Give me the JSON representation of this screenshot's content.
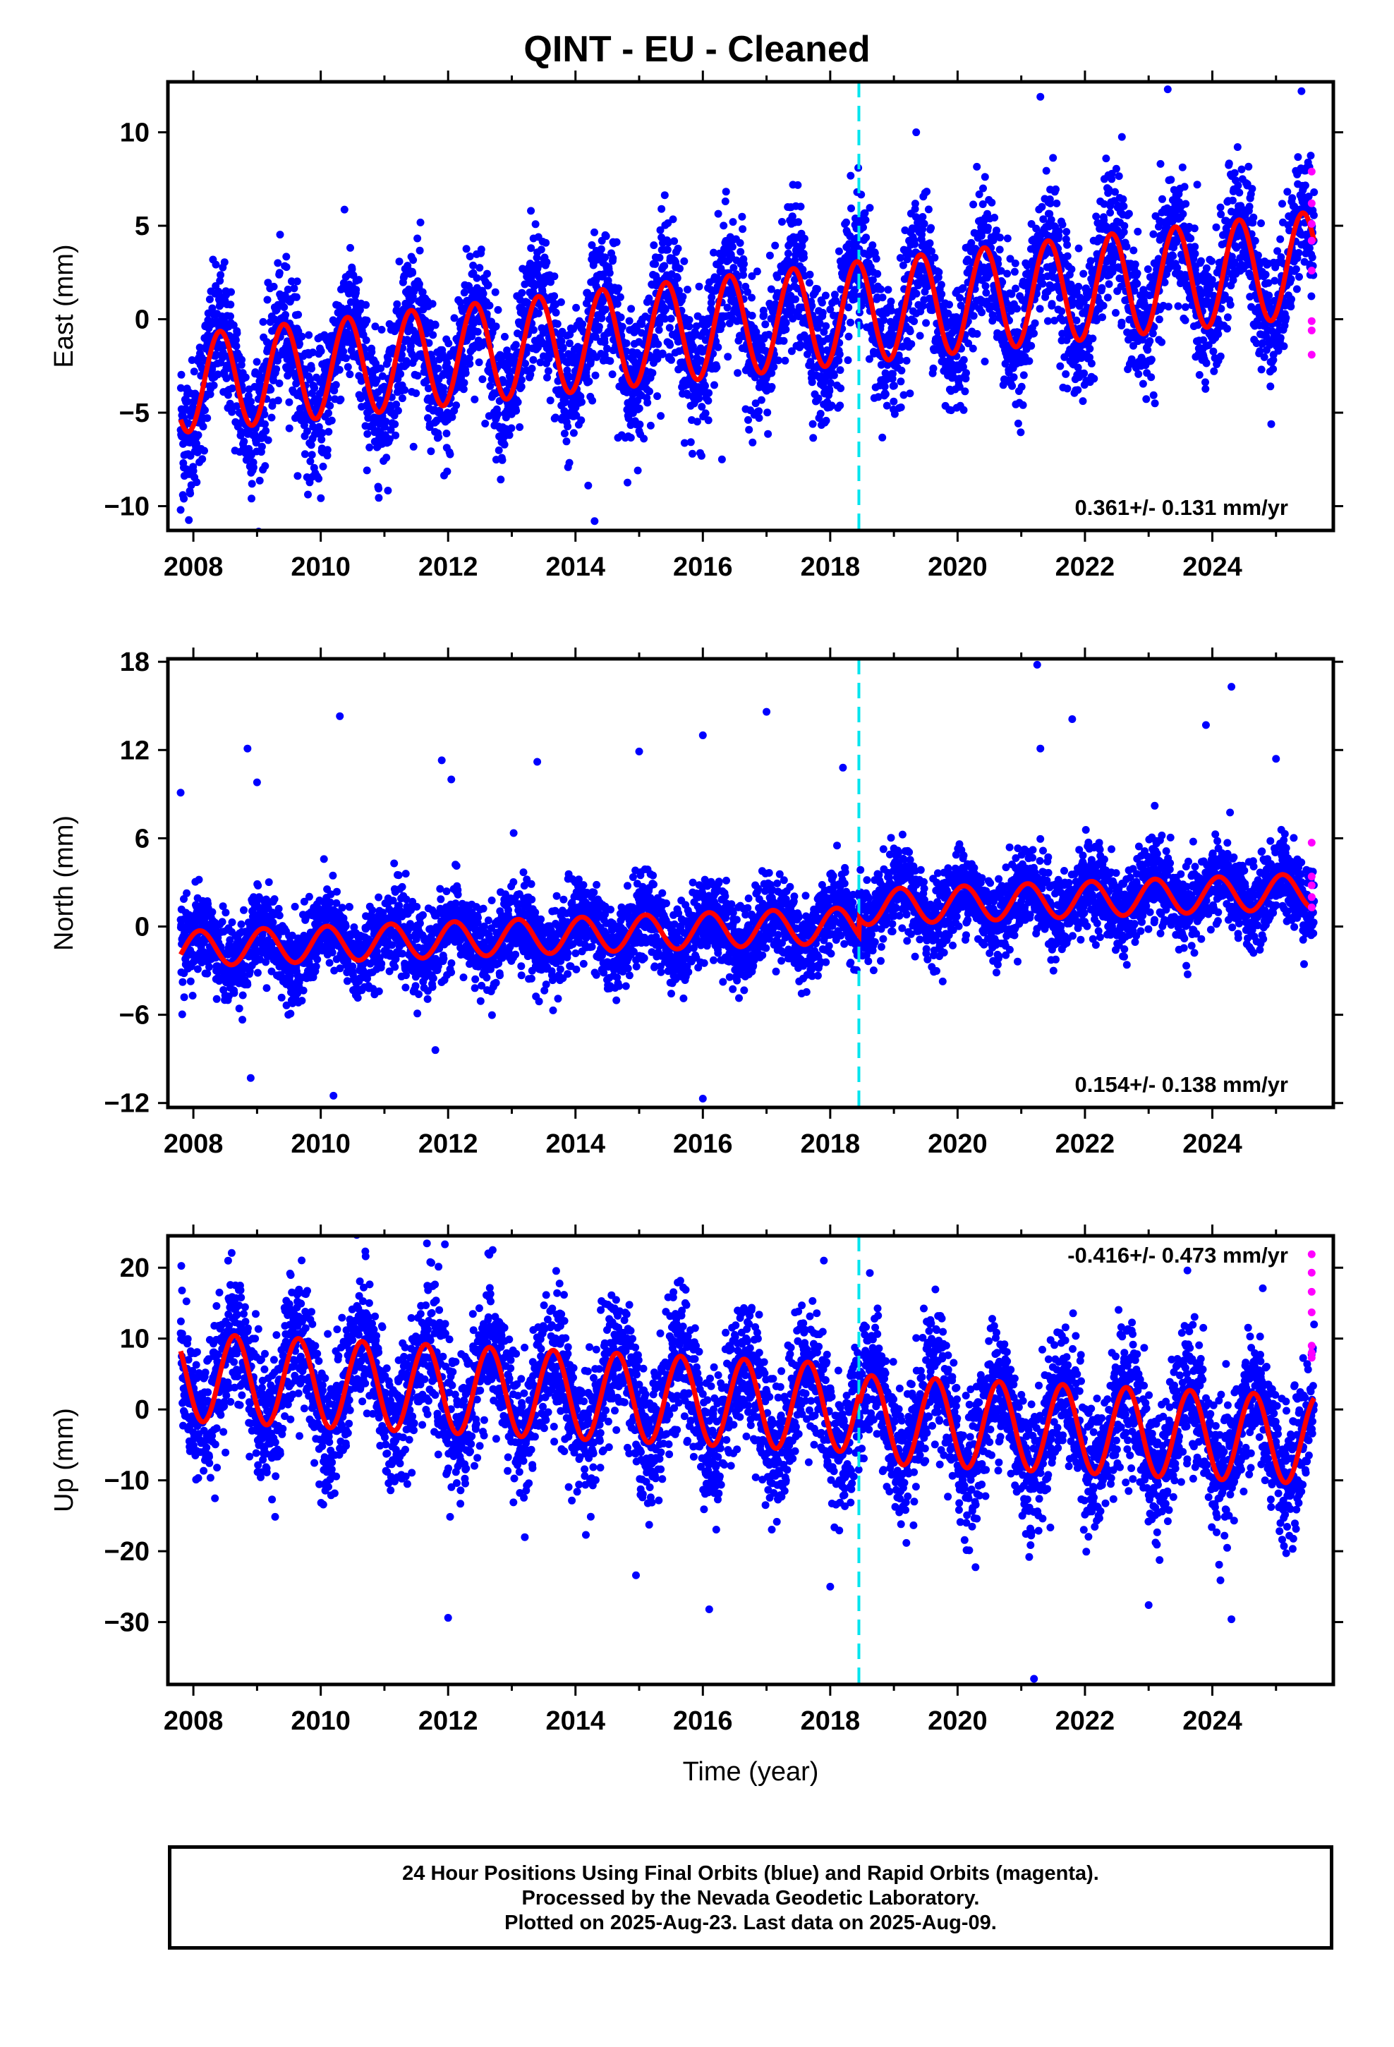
{
  "page": {
    "title": "QINT  - EU - Cleaned"
  },
  "colors": {
    "final": "#0000ff",
    "rapid": "#ff00ff",
    "model": "#ff0000",
    "antenna_change": "#00e5ee"
  },
  "chart_data": [
    {
      "type": "scatter",
      "id": "east",
      "ylabel": "East (mm)",
      "xlabel": "",
      "xlim": [
        2007.6,
        2025.9
      ],
      "ylim": [
        -11.3,
        12.7
      ],
      "yticks": [
        -10,
        -5,
        0,
        5,
        10
      ],
      "ytick_labels": [
        "−10",
        "−5",
        "0",
        "5",
        "10"
      ],
      "xticks": [
        2008,
        2010,
        2012,
        2014,
        2016,
        2018,
        2020,
        2022,
        2024
      ],
      "xtick_labels": [
        "2008",
        "2010",
        "2012",
        "2014",
        "2016",
        "2018",
        "2020",
        "2022",
        "2024"
      ],
      "rate_label": "0.361+/- 0.131 mm/yr",
      "rate_position": "bottom-right",
      "antenna_change_year": 2018.45,
      "data_start": 2007.8,
      "data_end": 2025.6,
      "model": {
        "intercept_2008": -3.4,
        "trend_mm_per_yr": 0.361,
        "annual_amp_start": 2.6,
        "annual_amp_end": 2.8,
        "annual_phase_peak": 0.42,
        "offset_at_change": 0.0
      },
      "scatter_noise_sd": 1.8,
      "rapid_points": [
        [
          2025.56,
          7.9
        ],
        [
          2025.56,
          6.2
        ],
        [
          2025.56,
          5.1
        ],
        [
          2025.56,
          4.2
        ],
        [
          2025.56,
          2.6
        ],
        [
          2025.56,
          -0.1
        ],
        [
          2025.56,
          -0.6
        ],
        [
          2025.56,
          -1.9
        ]
      ],
      "outliers": [
        [
          2007.8,
          -10.2
        ],
        [
          2007.85,
          -9.6
        ],
        [
          2014.3,
          -10.8
        ],
        [
          2014.2,
          -8.9
        ],
        [
          2013.3,
          5.8
        ],
        [
          2016.3,
          -7.5
        ],
        [
          2019.35,
          10.0
        ],
        [
          2021.3,
          11.9
        ],
        [
          2023.3,
          12.3
        ],
        [
          2025.4,
          12.2
        ],
        [
          2015.35,
          5.9
        ]
      ]
    },
    {
      "type": "scatter",
      "id": "north",
      "ylabel": "North (mm)",
      "xlabel": "",
      "xlim": [
        2007.6,
        2025.9
      ],
      "ylim": [
        -12.3,
        18.2
      ],
      "yticks": [
        -12,
        -6,
        0,
        6,
        12,
        18
      ],
      "ytick_labels": [
        "−12",
        "−6",
        "0",
        "6",
        "12",
        "18"
      ],
      "xticks": [
        2008,
        2010,
        2012,
        2014,
        2016,
        2018,
        2020,
        2022,
        2024
      ],
      "xtick_labels": [
        "2008",
        "2010",
        "2012",
        "2014",
        "2016",
        "2018",
        "2020",
        "2022",
        "2024"
      ],
      "rate_label": "0.154+/- 0.138 mm/yr",
      "rate_position": "bottom-right",
      "antenna_change_year": 2018.45,
      "data_start": 2007.8,
      "data_end": 2025.6,
      "model": {
        "intercept_2008": -1.5,
        "trend_mm_per_yr": 0.154,
        "annual_amp_start": 1.2,
        "annual_amp_end": 1.2,
        "annual_phase_peak": 0.1,
        "offset_at_change": 1.2
      },
      "scatter_noise_sd": 1.4,
      "rapid_points": [
        [
          2025.56,
          5.7
        ],
        [
          2025.56,
          3.4
        ],
        [
          2025.56,
          2.8
        ],
        [
          2025.56,
          2.0
        ],
        [
          2025.56,
          1.3
        ]
      ],
      "outliers": [
        [
          2007.8,
          9.1
        ],
        [
          2008.85,
          12.1
        ],
        [
          2009.0,
          9.8
        ],
        [
          2010.3,
          14.3
        ],
        [
          2011.9,
          11.3
        ],
        [
          2012.05,
          10.0
        ],
        [
          2013.4,
          11.2
        ],
        [
          2015.0,
          11.9
        ],
        [
          2016.0,
          13.0
        ],
        [
          2017.0,
          14.6
        ],
        [
          2018.2,
          10.8
        ],
        [
          2021.25,
          17.8
        ],
        [
          2021.3,
          12.1
        ],
        [
          2021.8,
          14.1
        ],
        [
          2023.9,
          13.7
        ],
        [
          2024.3,
          16.3
        ],
        [
          2025.0,
          11.4
        ],
        [
          2008.9,
          -10.3
        ],
        [
          2010.2,
          -11.5
        ],
        [
          2011.8,
          -8.4
        ],
        [
          2016.0,
          -11.7
        ]
      ]
    },
    {
      "type": "scatter",
      "id": "up",
      "ylabel": "Up (mm)",
      "xlabel": "Time (year)",
      "xlim": [
        2007.6,
        2025.9
      ],
      "ylim": [
        -38.8,
        24.5
      ],
      "yticks": [
        -30,
        -20,
        -10,
        0,
        10,
        20
      ],
      "ytick_labels": [
        "−30",
        "−20",
        "−10",
        "0",
        "10",
        "20"
      ],
      "xticks": [
        2008,
        2010,
        2012,
        2014,
        2016,
        2018,
        2020,
        2022,
        2024
      ],
      "xtick_labels": [
        "2008",
        "2010",
        "2012",
        "2014",
        "2016",
        "2018",
        "2020",
        "2022",
        "2024"
      ],
      "rate_label": "-0.416+/- 0.473 mm/yr",
      "rate_position": "top-right",
      "antenna_change_year": 2018.45,
      "data_start": 2007.8,
      "data_end": 2025.6,
      "model": {
        "intercept_2008": 4.5,
        "trend_mm_per_yr": -0.416,
        "annual_amp_start": 6.2,
        "annual_amp_end": 6.2,
        "annual_phase_peak": 0.65,
        "offset_at_change": -1.5
      },
      "scatter_noise_sd": 4.8,
      "rapid_points": [
        [
          2025.56,
          21.9
        ],
        [
          2025.56,
          19.3
        ],
        [
          2025.56,
          16.6
        ],
        [
          2025.56,
          13.7
        ],
        [
          2025.56,
          9.0
        ],
        [
          2025.56,
          8.0
        ],
        [
          2025.56,
          7.3
        ]
      ],
      "outliers": [
        [
          2011.95,
          23.3
        ],
        [
          2012.0,
          -29.4
        ],
        [
          2016.1,
          -28.2
        ],
        [
          2018.0,
          -25.0
        ],
        [
          2021.2,
          -38.0
        ],
        [
          2023.0,
          -27.6
        ],
        [
          2024.3,
          -29.6
        ],
        [
          2012.7,
          22.5
        ],
        [
          2010.7,
          22.3
        ],
        [
          2017.9,
          21.0
        ],
        [
          2014.95,
          -23.4
        ]
      ]
    }
  ],
  "footer": {
    "line1": "24 Hour Positions Using Final Orbits (blue) and Rapid Orbits (magenta).",
    "line2": "Processed by the Nevada Geodetic Laboratory.",
    "line3": "Plotted on 2025-Aug-23. Last data on 2025-Aug-09."
  }
}
